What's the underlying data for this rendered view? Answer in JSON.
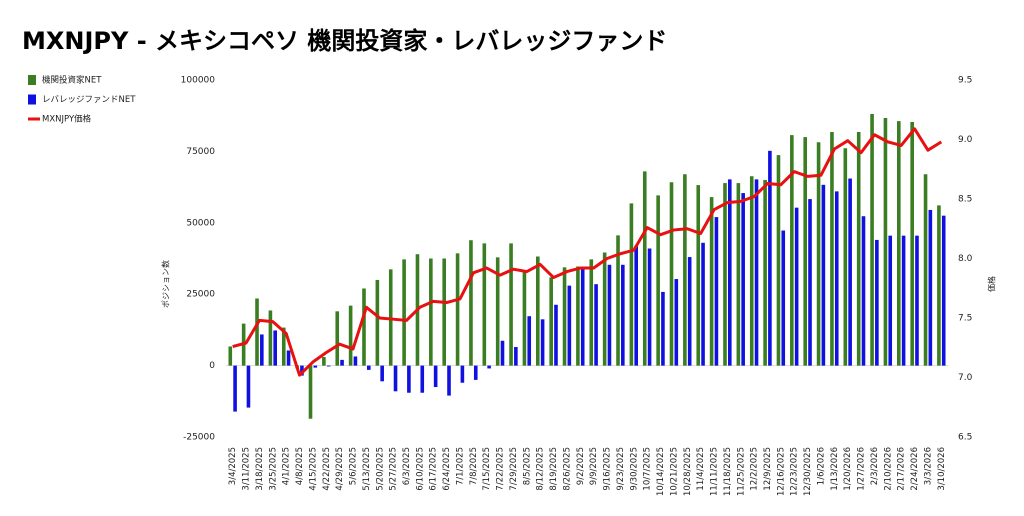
{
  "chart_data": {
    "type": "bar_line",
    "title": "MXNJPY - メキシコペソ 機関投資家・レバレッジファンド",
    "y_label": "ポジション数",
    "y2_label": "価格",
    "categories": [
      "3/4/2025",
      "3/11/2025",
      "3/18/2025",
      "3/25/2025",
      "4/1/2025",
      "4/8/2025",
      "4/15/2025",
      "4/22/2025",
      "4/29/2025",
      "5/6/2025",
      "5/13/2025",
      "5/20/2025",
      "5/27/2025",
      "6/3/2025",
      "6/10/2025",
      "6/17/2025",
      "6/24/2025",
      "7/1/2025",
      "7/8/2025",
      "7/15/2025",
      "7/22/2025",
      "7/29/2025",
      "8/5/2025",
      "8/12/2025",
      "8/19/2025",
      "8/26/2025",
      "9/2/2025",
      "9/9/2025",
      "9/16/2025",
      "9/23/2025",
      "9/30/2025",
      "10/7/2025",
      "10/14/2025",
      "10/21/2025",
      "10/28/2025",
      "11/4/2025",
      "11/11/2025",
      "11/18/2025",
      "11/25/2025",
      "12/2/2025",
      "12/9/2025",
      "12/16/2025",
      "12/23/2025",
      "12/30/2025",
      "1/6/2026",
      "1/13/2026",
      "1/20/2026",
      "1/27/2026",
      "2/3/2026",
      "2/10/2026",
      "2/17/2026",
      "2/24/2026",
      "3/3/2026",
      "3/10/2026"
    ],
    "series": [
      {
        "name": "機関投資家NET",
        "color": "#3a7d22",
        "kind": "bar",
        "values": [
          6700,
          14700,
          23500,
          19300,
          13300,
          -1000,
          -18600,
          3000,
          19000,
          21000,
          27000,
          30000,
          33700,
          37200,
          39000,
          37500,
          37500,
          39300,
          43900,
          42800,
          37900,
          42800,
          33300,
          38200,
          30900,
          34400,
          34700,
          37200,
          39600,
          45600,
          56800,
          68000,
          59600,
          64200,
          67000,
          63200,
          59000,
          63900,
          63900,
          66300,
          65000,
          73700,
          80700,
          80000,
          78200,
          81800,
          76100,
          81800,
          88100,
          86700,
          85600,
          85300,
          67000,
          56100
        ]
      },
      {
        "name": "レバレッジファンドNET",
        "color": "#1010e0",
        "kind": "bar",
        "values": [
          -16100,
          -14700,
          10900,
          12300,
          5300,
          -3500,
          -700,
          -300,
          2000,
          3200,
          -1500,
          -5500,
          -9000,
          -9500,
          -9500,
          -7500,
          -10500,
          -6000,
          -5000,
          -1000,
          8700,
          6500,
          17300,
          16200,
          21300,
          28000,
          34000,
          28500,
          35300,
          35300,
          42000,
          41000,
          25800,
          30300,
          38000,
          43000,
          52000,
          65200,
          60400,
          65200,
          75200,
          47300,
          55300,
          58300,
          63300,
          61000,
          65500,
          52300,
          44000,
          45500,
          45500,
          45500,
          54500,
          52500
        ]
      },
      {
        "name": "MXNJPY価格",
        "color": "#e81010",
        "kind": "line",
        "axis": "y2",
        "values": [
          7.26,
          7.29,
          7.48,
          7.47,
          7.37,
          7.02,
          7.13,
          7.21,
          7.28,
          7.24,
          7.59,
          7.5,
          7.49,
          7.48,
          7.59,
          7.64,
          7.63,
          7.66,
          7.88,
          7.92,
          7.86,
          7.91,
          7.89,
          7.95,
          7.84,
          7.89,
          7.92,
          7.92,
          8.0,
          8.04,
          8.07,
          8.26,
          8.2,
          8.24,
          8.25,
          8.21,
          8.41,
          8.47,
          8.48,
          8.52,
          8.63,
          8.62,
          8.73,
          8.69,
          8.7,
          8.92,
          8.99,
          8.89,
          9.04,
          8.98,
          8.95,
          9.09,
          8.91,
          8.98
        ]
      }
    ],
    "ylim": [
      -25000,
      100000
    ],
    "yticks": [
      -25000,
      0,
      25000,
      50000,
      75000,
      100000
    ],
    "y2lim": [
      6.5,
      9.5
    ],
    "y2ticks": [
      6.5,
      {
        "value": 7,
        "label": "7.0"
      },
      7.5,
      {
        "value": 8,
        "label": "8.0"
      },
      8.5,
      {
        "value": 9,
        "label": "9.0"
      },
      9.5
    ],
    "legend": "top-left",
    "grid": false
  }
}
